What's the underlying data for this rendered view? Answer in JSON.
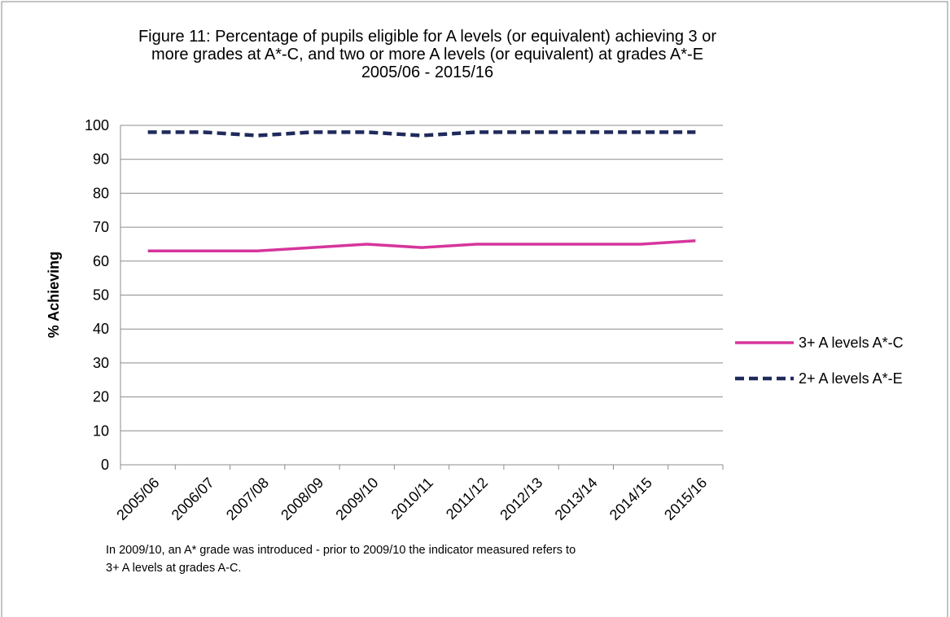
{
  "chart_data": {
    "type": "line",
    "title": [
      "Figure 11: Percentage of pupils eligible for A levels (or equivalent) achieving 3 or",
      "more grades at A*-C, and two or more A levels (or equivalent) at grades A*-E",
      "2005/06 - 2015/16"
    ],
    "y_label": "% Achieving",
    "note": [
      "In 2009/10, an A* grade was introduced - prior to 2009/10  the indicator measured refers to",
      "3+ A levels at grades A-C."
    ],
    "categories": [
      "2005/06",
      "2006/07",
      "2007/08",
      "2008/09",
      "2009/10",
      "2010/11",
      "2011/12",
      "2012/13",
      "2013/14",
      "2014/15",
      "2015/16"
    ],
    "series": [
      {
        "name": "3+ A levels A*-C",
        "color": "#d6359c",
        "dash": false,
        "values": [
          63,
          63,
          63,
          64,
          65,
          64,
          65,
          65,
          65,
          65,
          66
        ]
      },
      {
        "name": "2+ A levels A*-E",
        "color": "#1f2a5c",
        "dash": true,
        "values": [
          98,
          98,
          97,
          98,
          98,
          97,
          98,
          98,
          98,
          98,
          98
        ]
      }
    ],
    "ylim": [
      0,
      100
    ],
    "yticks": [
      0,
      10,
      20,
      30,
      40,
      50,
      60,
      70,
      80,
      90,
      100
    ],
    "grid": true,
    "legend": "right"
  }
}
